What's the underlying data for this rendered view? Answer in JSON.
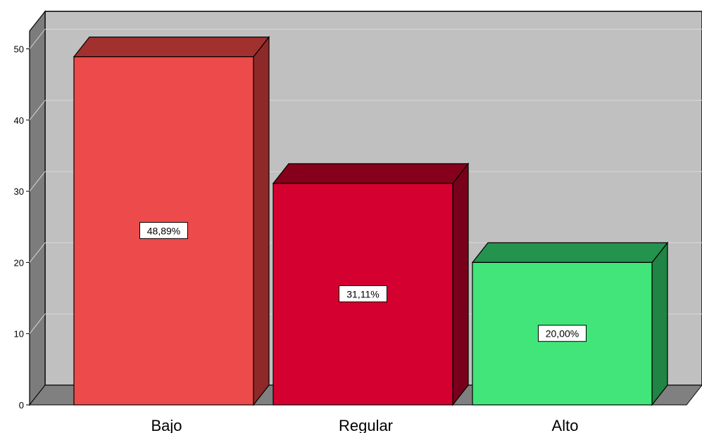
{
  "chart_data": {
    "type": "bar",
    "title": "",
    "xlabel": "",
    "ylabel": "",
    "categories": [
      "Bajo",
      "Regular",
      "Alto"
    ],
    "values": [
      48.89,
      31.11,
      20.0
    ],
    "data_labels": [
      "48,89%",
      "31,11%",
      "20,00%"
    ],
    "yticks": [
      "0",
      "10",
      "20",
      "30",
      "40",
      "50"
    ],
    "ylim": [
      0,
      52.5
    ],
    "grid": true,
    "legend": "none",
    "style": "3d",
    "colors": {
      "front": [
        "#ed4b4b",
        "#d40030",
        "#42e57a"
      ],
      "top": [
        "#a2302f",
        "#86001c",
        "#24934e"
      ],
      "side": [
        "#8d2a29",
        "#78001a",
        "#1f8444"
      ],
      "wall": "#c0c0c0",
      "wall_side": "#7c7c7c",
      "floor": "#808080"
    }
  }
}
